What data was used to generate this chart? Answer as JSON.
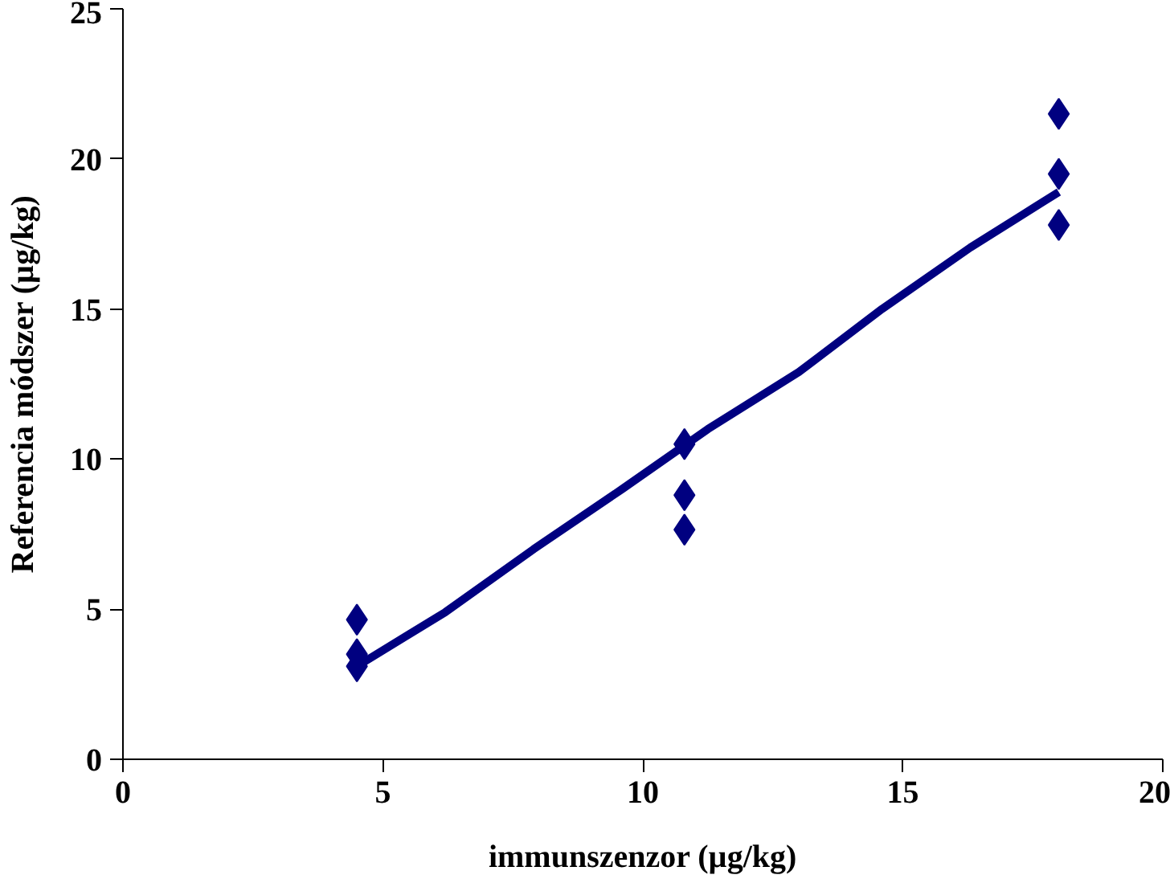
{
  "chart_data": {
    "type": "scatter",
    "xlabel": "immunszenzor (µg/kg)",
    "ylabel": "Referencia módszer (µg/kg)",
    "xlim": [
      0,
      20
    ],
    "xticks": [
      0,
      5,
      10,
      15,
      20
    ],
    "ylim": [
      0,
      25
    ],
    "yticks": [
      0,
      5,
      10,
      15,
      20,
      25
    ],
    "grid": false,
    "series": [
      {
        "marker": "diamond",
        "color": "#000080",
        "x": [
          4.5,
          4.5,
          4.5,
          10.8,
          10.8,
          10.8,
          18.0,
          18.0,
          18.0
        ],
        "values": [
          4.65,
          3.5,
          3.1,
          10.5,
          8.8,
          7.65,
          21.5,
          19.5,
          17.8
        ]
      },
      {
        "type": "line",
        "color": "#000080",
        "line_style": "solid",
        "x": [
          4.5,
          6.2,
          7.9,
          9.6,
          11.25,
          13.0,
          14.6,
          16.3,
          18.0
        ],
        "values": [
          3.1,
          4.9,
          7.0,
          9.0,
          11.0,
          12.9,
          15.0,
          17.05,
          18.9
        ]
      }
    ]
  }
}
